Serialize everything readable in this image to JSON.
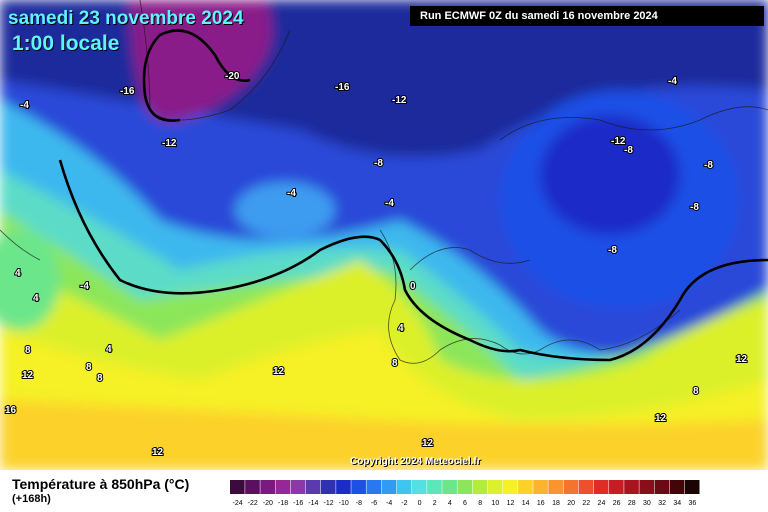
{
  "header": {
    "date": "samedi 23 novembre 2024",
    "time": "1:00 locale",
    "run": "Run ECMWF 0Z du samedi 16 novembre 2024"
  },
  "copyright": "Copyright 2024 Meteociel.fr",
  "footer": {
    "parameter": "Température à 850hPa (°C)",
    "lead": "(+168h)"
  },
  "legend": {
    "ticks": [
      "-24",
      "-22",
      "-20",
      "-18",
      "-16",
      "-14",
      "-12",
      "-10",
      "-8",
      "-6",
      "-4",
      "-2",
      "0",
      "2",
      "4",
      "6",
      "8",
      "10",
      "12",
      "14",
      "16",
      "18",
      "20",
      "22",
      "24",
      "26",
      "28",
      "30",
      "32",
      "34",
      "36"
    ],
    "colors": [
      "#3c0a3c",
      "#5a1060",
      "#7a1a7e",
      "#962896",
      "#8a3aa8",
      "#5a3ab0",
      "#3030b4",
      "#1c2cc8",
      "#1e50e6",
      "#2878f2",
      "#2f9cf2",
      "#3cc6f0",
      "#54e0e0",
      "#5ee6b8",
      "#6ce68a",
      "#8ce65a",
      "#b4ec3c",
      "#dcf02c",
      "#f6f028",
      "#fcd22a",
      "#fcb42e",
      "#fa942e",
      "#f4742e",
      "#ee502e",
      "#e02c28",
      "#c81c24",
      "#aa1420",
      "#8a0e1a",
      "#6a0a14",
      "#420608",
      "#1a0404"
    ]
  },
  "map_labels": [
    {
      "text": "-4",
      "lon": 20,
      "lat": 108
    },
    {
      "text": "-16",
      "lon": 120,
      "lat": 94
    },
    {
      "text": "-20",
      "lon": 225,
      "lat": 79
    },
    {
      "text": "-16",
      "lon": 335,
      "lat": 90
    },
    {
      "text": "-12",
      "lon": 392,
      "lat": 103
    },
    {
      "text": "-4",
      "lon": 668,
      "lat": 84
    },
    {
      "text": "-12",
      "lon": 162,
      "lat": 146
    },
    {
      "text": "-12",
      "lon": 611,
      "lat": 144
    },
    {
      "text": "-8",
      "lon": 624,
      "lat": 153
    },
    {
      "text": "-8",
      "lon": 374,
      "lat": 166
    },
    {
      "text": "-8",
      "lon": 704,
      "lat": 168
    },
    {
      "text": "-4",
      "lon": 287,
      "lat": 196
    },
    {
      "text": "-4",
      "lon": 385,
      "lat": 206
    },
    {
      "text": "-8",
      "lon": 690,
      "lat": 210
    },
    {
      "text": "-8",
      "lon": 608,
      "lat": 253
    },
    {
      "text": "4",
      "lon": 15,
      "lat": 276
    },
    {
      "text": "-4",
      "lon": 80,
      "lat": 289
    },
    {
      "text": "0",
      "lon": 410,
      "lat": 289
    },
    {
      "text": "4",
      "lon": 33,
      "lat": 301
    },
    {
      "text": "4",
      "lon": 398,
      "lat": 331
    },
    {
      "text": "8",
      "lon": 25,
      "lat": 353
    },
    {
      "text": "4",
      "lon": 106,
      "lat": 352
    },
    {
      "text": "12",
      "lon": 736,
      "lat": 362
    },
    {
      "text": "8",
      "lon": 392,
      "lat": 366
    },
    {
      "text": "8",
      "lon": 86,
      "lat": 370
    },
    {
      "text": "12",
      "lon": 22,
      "lat": 378
    },
    {
      "text": "8",
      "lon": 97,
      "lat": 381
    },
    {
      "text": "12",
      "lon": 273,
      "lat": 374
    },
    {
      "text": "8",
      "lon": 693,
      "lat": 394
    },
    {
      "text": "16",
      "lon": 5,
      "lat": 413
    },
    {
      "text": "12",
      "lon": 655,
      "lat": 421
    },
    {
      "text": "12",
      "lon": 422,
      "lat": 446
    },
    {
      "text": "12",
      "lon": 152,
      "lat": 455
    }
  ]
}
